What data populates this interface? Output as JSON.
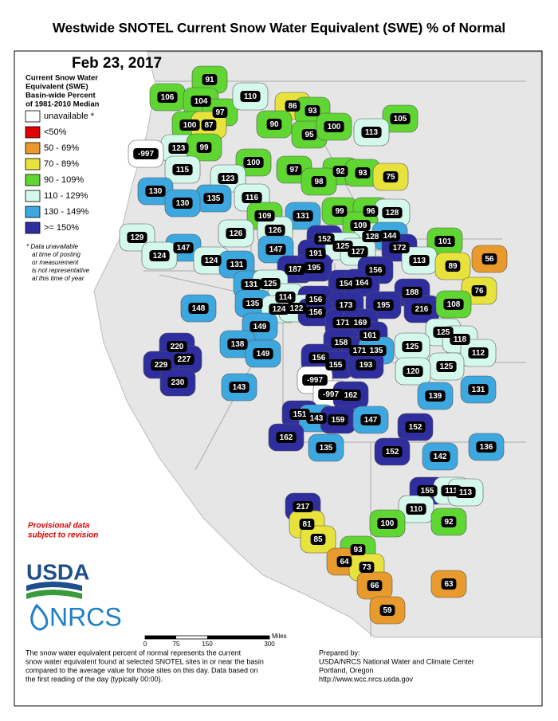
{
  "title": "Westwide SNOTEL Current Snow Water Equivalent (SWE) % of Normal",
  "date": "Feb 23, 2017",
  "legend": {
    "title_lines": [
      "Current Snow Water",
      "Equivalent (SWE)",
      "Basin-wide Percent",
      "of 1981-2010 Median"
    ],
    "items": [
      {
        "label": "unavailable *",
        "color": "#ffffff"
      },
      {
        "label": "<50%",
        "color": "#e00000"
      },
      {
        "label": "50 - 69%",
        "color": "#e89a2c"
      },
      {
        "label": "70 - 89%",
        "color": "#e8e23c"
      },
      {
        "label": "90 - 109%",
        "color": "#5fd631"
      },
      {
        "label": "110 - 129%",
        "color": "#d5f8ec"
      },
      {
        "label": "130 - 149%",
        "color": "#3da8e0"
      },
      {
        "label": ">= 150%",
        "color": "#2e2e9e"
      }
    ]
  },
  "note_lines": [
    "*  Data unavailable",
    "at time of posting",
    "or measurement",
    "is not representative",
    "at this time of year"
  ],
  "provisional_lines": [
    "Provisional data",
    "subject to revision"
  ],
  "scale": {
    "ticks": [
      0,
      75,
      150,
      300
    ],
    "unit": "Miles"
  },
  "logos": [
    "USDA",
    "NRCS"
  ],
  "footer_left": [
    "The snow water equivalent percent of normal represents the current",
    "snow water equivalent found at selected SNOTEL sites in or near the basin",
    "compared to the average value for those sites on this day. Data based on",
    "the first reading of the day (typically 00:00)."
  ],
  "footer_right": [
    "Prepared by:",
    "USDA/NRCS National Water and Climate Center",
    "Portland, Oregon",
    "http://www.wcc.nrcs.usda.gov"
  ],
  "basins": [
    {
      "value": 106,
      "color": "#5fd631"
    },
    {
      "value": 91,
      "color": "#5fd631"
    },
    {
      "value": 104,
      "color": "#5fd631"
    },
    {
      "value": 97,
      "color": "#5fd631"
    },
    {
      "value": 110,
      "color": "#d5f8ec"
    },
    {
      "value": 86,
      "color": "#e8e23c"
    },
    {
      "value": 93,
      "color": "#5fd631"
    },
    {
      "value": 105,
      "color": "#5fd631"
    },
    {
      "value": 100,
      "color": "#5fd631"
    },
    {
      "value": 87,
      "color": "#e8e23c"
    },
    {
      "value": 90,
      "color": "#5fd631"
    },
    {
      "value": 95,
      "color": "#5fd631"
    },
    {
      "value": 100,
      "color": "#5fd631"
    },
    {
      "value": 113,
      "color": "#d5f8ec"
    },
    {
      "value": 123,
      "color": "#d5f8ec"
    },
    {
      "value": 99,
      "color": "#5fd631"
    },
    {
      "value": -997,
      "color": "#ffffff"
    },
    {
      "value": 100,
      "color": "#5fd631"
    },
    {
      "value": 97,
      "color": "#5fd631"
    },
    {
      "value": 92,
      "color": "#5fd631"
    },
    {
      "value": 93,
      "color": "#5fd631"
    },
    {
      "value": 75,
      "color": "#e8e23c"
    },
    {
      "value": 115,
      "color": "#d5f8ec"
    },
    {
      "value": 123,
      "color": "#d5f8ec"
    },
    {
      "value": 98,
      "color": "#5fd631"
    },
    {
      "value": 130,
      "color": "#3da8e0"
    },
    {
      "value": 135,
      "color": "#3da8e0"
    },
    {
      "value": 116,
      "color": "#d5f8ec"
    },
    {
      "value": 130,
      "color": "#3da8e0"
    },
    {
      "value": 99,
      "color": "#5fd631"
    },
    {
      "value": 96,
      "color": "#5fd631"
    },
    {
      "value": 128,
      "color": "#d5f8ec"
    },
    {
      "value": 109,
      "color": "#5fd631"
    },
    {
      "value": 131,
      "color": "#3da8e0"
    },
    {
      "value": 126,
      "color": "#d5f8ec"
    },
    {
      "value": 109,
      "color": "#5fd631"
    },
    {
      "value": 128,
      "color": "#d5f8ec"
    },
    {
      "value": 144,
      "color": "#3da8e0"
    },
    {
      "value": 129,
      "color": "#d5f8ec"
    },
    {
      "value": 147,
      "color": "#3da8e0"
    },
    {
      "value": 152,
      "color": "#2e2e9e"
    },
    {
      "value": 101,
      "color": "#5fd631"
    },
    {
      "value": 124,
      "color": "#d5f8ec"
    },
    {
      "value": 126,
      "color": "#d5f8ec"
    },
    {
      "value": 147,
      "color": "#3da8e0"
    },
    {
      "value": 191,
      "color": "#2e2e9e"
    },
    {
      "value": 125,
      "color": "#d5f8ec"
    },
    {
      "value": 127,
      "color": "#d5f8ec"
    },
    {
      "value": 172,
      "color": "#2e2e9e"
    },
    {
      "value": 56,
      "color": "#e89a2c"
    },
    {
      "value": 113,
      "color": "#d5f8ec"
    },
    {
      "value": 89,
      "color": "#e8e23c"
    },
    {
      "value": 124,
      "color": "#d5f8ec"
    },
    {
      "value": 131,
      "color": "#3da8e0"
    },
    {
      "value": 187,
      "color": "#2e2e9e"
    },
    {
      "value": 195,
      "color": "#2e2e9e"
    },
    {
      "value": 156,
      "color": "#2e2e9e"
    },
    {
      "value": 154,
      "color": "#2e2e9e"
    },
    {
      "value": 164,
      "color": "#2e2e9e"
    },
    {
      "value": 131,
      "color": "#3da8e0"
    },
    {
      "value": 125,
      "color": "#d5f8ec"
    },
    {
      "value": 188,
      "color": "#2e2e9e"
    },
    {
      "value": 76,
      "color": "#e8e23c"
    },
    {
      "value": 114,
      "color": "#d5f8ec"
    },
    {
      "value": 156,
      "color": "#2e2e9e"
    },
    {
      "value": 173,
      "color": "#2e2e9e"
    },
    {
      "value": 195,
      "color": "#2e2e9e"
    },
    {
      "value": 216,
      "color": "#2e2e9e"
    },
    {
      "value": 108,
      "color": "#5fd631"
    },
    {
      "value": 148,
      "color": "#3da8e0"
    },
    {
      "value": 135,
      "color": "#3da8e0"
    },
    {
      "value": 124,
      "color": "#d5f8ec"
    },
    {
      "value": 122,
      "color": "#d5f8ec"
    },
    {
      "value": 156,
      "color": "#2e2e9e"
    },
    {
      "value": 171,
      "color": "#2e2e9e"
    },
    {
      "value": 169,
      "color": "#2e2e9e"
    },
    {
      "value": 149,
      "color": "#3da8e0"
    },
    {
      "value": 125,
      "color": "#d5f8ec"
    },
    {
      "value": 161,
      "color": "#2e2e9e"
    },
    {
      "value": 118,
      "color": "#d5f8ec"
    },
    {
      "value": 220,
      "color": "#2e2e9e"
    },
    {
      "value": 138,
      "color": "#3da8e0"
    },
    {
      "value": 158,
      "color": "#2e2e9e"
    },
    {
      "value": 171,
      "color": "#2e2e9e"
    },
    {
      "value": 135,
      "color": "#3da8e0"
    },
    {
      "value": 125,
      "color": "#d5f8ec"
    },
    {
      "value": 112,
      "color": "#d5f8ec"
    },
    {
      "value": 227,
      "color": "#2e2e9e"
    },
    {
      "value": 229,
      "color": "#2e2e9e"
    },
    {
      "value": 149,
      "color": "#3da8e0"
    },
    {
      "value": 156,
      "color": "#2e2e9e"
    },
    {
      "value": 155,
      "color": "#2e2e9e"
    },
    {
      "value": 193,
      "color": "#2e2e9e"
    },
    {
      "value": 125,
      "color": "#d5f8ec"
    },
    {
      "value": 120,
      "color": "#d5f8ec"
    },
    {
      "value": 230,
      "color": "#2e2e9e"
    },
    {
      "value": -997,
      "color": "#ffffff"
    },
    {
      "value": 143,
      "color": "#3da8e0"
    },
    {
      "value": 131,
      "color": "#3da8e0"
    },
    {
      "value": -997,
      "color": "#ffffff"
    },
    {
      "value": 162,
      "color": "#2e2e9e"
    },
    {
      "value": 139,
      "color": "#3da8e0"
    },
    {
      "value": 151,
      "color": "#2e2e9e"
    },
    {
      "value": 143,
      "color": "#3da8e0"
    },
    {
      "value": 159,
      "color": "#2e2e9e"
    },
    {
      "value": 147,
      "color": "#3da8e0"
    },
    {
      "value": 152,
      "color": "#2e2e9e"
    },
    {
      "value": 162,
      "color": "#2e2e9e"
    },
    {
      "value": 135,
      "color": "#3da8e0"
    },
    {
      "value": 136,
      "color": "#3da8e0"
    },
    {
      "value": 152,
      "color": "#2e2e9e"
    },
    {
      "value": 142,
      "color": "#3da8e0"
    },
    {
      "value": 155,
      "color": "#2e2e9e"
    },
    {
      "value": 111,
      "color": "#d5f8ec"
    },
    {
      "value": 113,
      "color": "#d5f8ec"
    },
    {
      "value": 110,
      "color": "#d5f8ec"
    },
    {
      "value": 217,
      "color": "#2e2e9e"
    },
    {
      "value": 100,
      "color": "#5fd631"
    },
    {
      "value": 92,
      "color": "#5fd631"
    },
    {
      "value": 81,
      "color": "#e8e23c"
    },
    {
      "value": 85,
      "color": "#e8e23c"
    },
    {
      "value": 93,
      "color": "#5fd631"
    },
    {
      "value": 64,
      "color": "#e89a2c"
    },
    {
      "value": 73,
      "color": "#e8e23c"
    },
    {
      "value": 66,
      "color": "#e89a2c"
    },
    {
      "value": 63,
      "color": "#e89a2c"
    },
    {
      "value": 59,
      "color": "#e89a2c"
    }
  ]
}
